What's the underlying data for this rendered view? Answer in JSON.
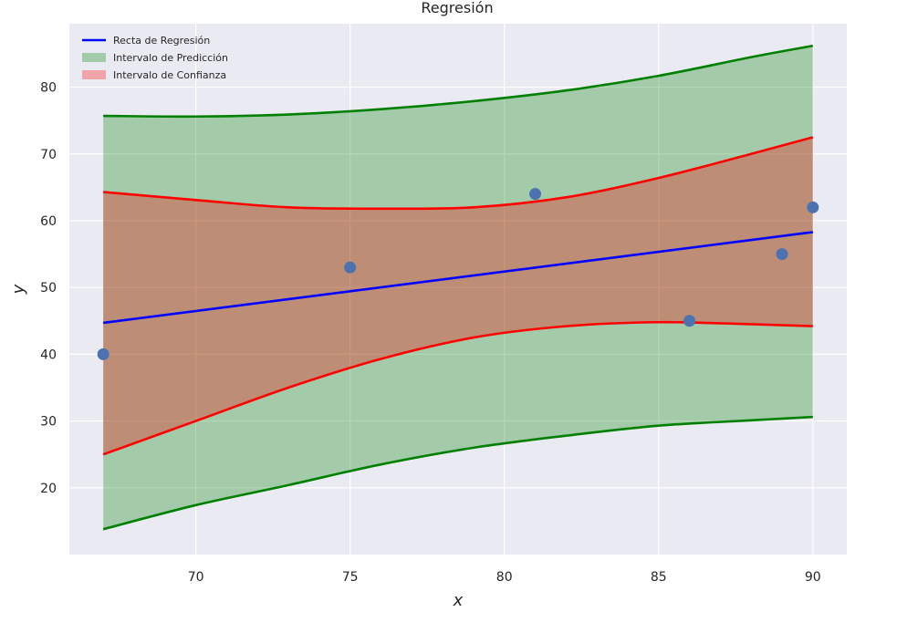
{
  "chart_data": {
    "type": "line",
    "title": "Regresión",
    "xlabel": "x",
    "ylabel": "y",
    "xlim": [
      65.9,
      91.1
    ],
    "ylim": [
      10.0,
      89.5
    ],
    "xticks": [
      70,
      75,
      80,
      85,
      90
    ],
    "yticks": [
      20,
      30,
      40,
      50,
      60,
      70,
      80
    ],
    "grid": true,
    "background": "#eaeaf2",
    "legend_position": "top-left",
    "legend": [
      {
        "label": "Recta de Regresión",
        "kind": "line",
        "color": "#0000ff"
      },
      {
        "label": "Intervalo de Predicción",
        "kind": "patch",
        "color": "#008000"
      },
      {
        "label": "Intervalo de Confianza",
        "kind": "patch",
        "color": "#ff0000"
      }
    ],
    "scatter": {
      "color": "#4c72b0",
      "x": [
        67,
        75,
        81,
        86,
        89,
        90
      ],
      "y": [
        40,
        53,
        64,
        45,
        55,
        62
      ]
    },
    "regression": {
      "color": "#0000ff",
      "x": [
        67,
        90
      ],
      "y": [
        44.7,
        58.3
      ]
    },
    "confidence_band": {
      "color": "#ff0000",
      "x": [
        67,
        70,
        73,
        76,
        79,
        82,
        85,
        88,
        90
      ],
      "upper": [
        64.3,
        63.1,
        62.0,
        61.8,
        62.0,
        63.5,
        66.4,
        70.0,
        72.5
      ],
      "lower": [
        25.0,
        30.0,
        35.0,
        39.3,
        42.5,
        44.2,
        44.8,
        44.5,
        44.2
      ]
    },
    "prediction_band": {
      "color": "#008000",
      "x": [
        67,
        70,
        73,
        76,
        79,
        82,
        85,
        88,
        90
      ],
      "upper": [
        75.7,
        75.6,
        75.9,
        76.7,
        77.9,
        79.5,
        81.7,
        84.5,
        86.2
      ],
      "lower": [
        13.8,
        17.4,
        20.4,
        23.5,
        26.0,
        27.8,
        29.3,
        30.1,
        30.6
      ]
    }
  }
}
